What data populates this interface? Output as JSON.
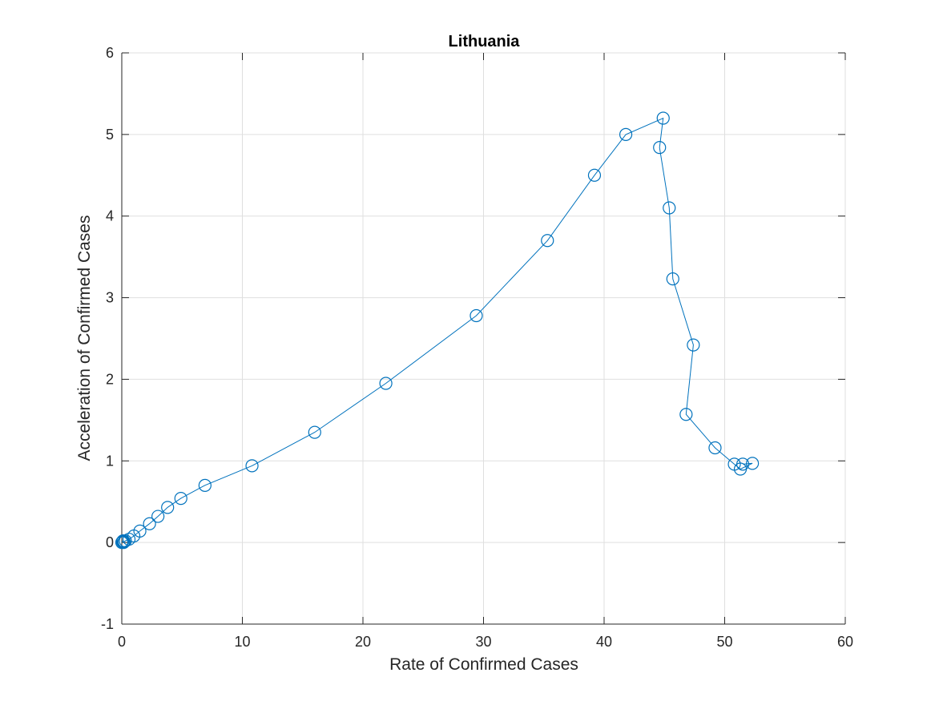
{
  "chart_data": {
    "type": "line",
    "title": "Lithuania",
    "xlabel": "Rate of Confirmed Cases",
    "ylabel": "Acceleration of Confirmed Cases",
    "xlim": [
      0,
      60
    ],
    "ylim": [
      -1,
      6
    ],
    "xticks": [
      0,
      10,
      20,
      30,
      40,
      50,
      60
    ],
    "yticks": [
      -1,
      0,
      1,
      2,
      3,
      4,
      5,
      6
    ],
    "grid": true,
    "marker": "circle",
    "color": "#0072bd",
    "series": [
      {
        "x": [
          0,
          0.05,
          0.1,
          0.15,
          0.2,
          0.3,
          0.6,
          1.0,
          1.5,
          2.3,
          3.0,
          3.8,
          4.9,
          6.9,
          10.8,
          16.0,
          21.9,
          29.4,
          35.3,
          39.2,
          41.8,
          44.9,
          44.6,
          45.4,
          45.7,
          47.4,
          46.8,
          49.2,
          50.8,
          51.3,
          52.3,
          51.5
        ],
        "y": [
          0,
          0.01,
          0.02,
          0,
          0.01,
          0.02,
          0.04,
          0.08,
          0.14,
          0.23,
          0.32,
          0.43,
          0.54,
          0.7,
          0.94,
          1.35,
          1.95,
          2.78,
          3.7,
          4.5,
          5.0,
          5.2,
          4.84,
          4.1,
          3.23,
          2.42,
          1.57,
          1.16,
          0.96,
          0.9,
          0.97,
          0.96
        ]
      }
    ]
  }
}
